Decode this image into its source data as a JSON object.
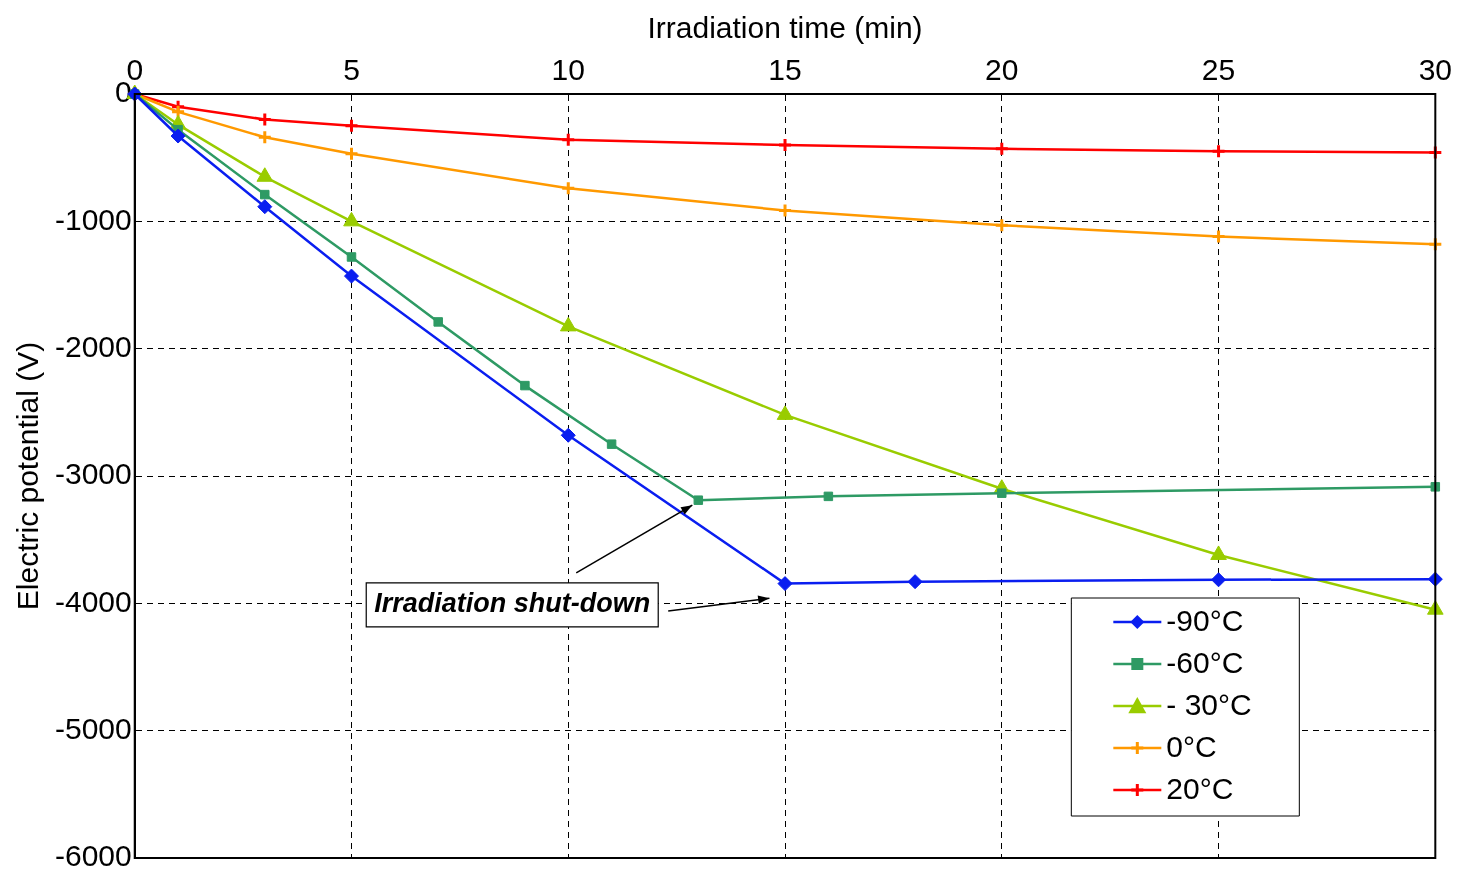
{
  "chart_data": {
    "type": "line",
    "xlabel": "Irradiation time (min)",
    "ylabel": "Electric potential (V)",
    "xlim": [
      0,
      30
    ],
    "xticks": [
      0,
      5,
      10,
      15,
      20,
      25,
      30
    ],
    "ylim": [
      -6000,
      0
    ],
    "yticks": [
      -6000,
      -5000,
      -4000,
      -3000,
      -2000,
      -1000,
      0
    ],
    "grid": true,
    "legend": "bottom right",
    "line_style": "solid",
    "series": [
      {
        "name": "-90°C",
        "color": "#0a1ef0",
        "marker": "diamond",
        "x": [
          0,
          1,
          3,
          5,
          10,
          15,
          18,
          25,
          30
        ],
        "values": [
          0,
          -330,
          -885,
          -1430,
          -2680,
          -3845,
          -3830,
          -3815,
          -3810
        ]
      },
      {
        "name": "-60°C",
        "color": "#2e9a64",
        "marker": "square",
        "x": [
          0,
          1,
          3,
          5,
          7,
          9,
          11,
          13,
          16,
          20,
          30
        ],
        "values": [
          0,
          -280,
          -790,
          -1280,
          -1790,
          -2290,
          -2750,
          -3190,
          -3160,
          -3135,
          -3085
        ]
      },
      {
        "name": "- 30°C",
        "color": "#99cc00",
        "marker": "triangle",
        "x": [
          0,
          1,
          3,
          5,
          10,
          15,
          20,
          25,
          30
        ],
        "values": [
          0,
          -240,
          -650,
          -1000,
          -1825,
          -2520,
          -3100,
          -3620,
          -4050
        ]
      },
      {
        "name": "0°C",
        "color": "#ff9900",
        "marker": "cross",
        "x": [
          0,
          1,
          3,
          5,
          10,
          15,
          20,
          25,
          30
        ],
        "values": [
          0,
          -140,
          -340,
          -470,
          -740,
          -915,
          -1030,
          -1120,
          -1180
        ]
      },
      {
        "name": "20°C",
        "color": "#ff0000",
        "marker": "cross",
        "x": [
          0,
          1,
          3,
          5,
          10,
          15,
          20,
          25,
          30
        ],
        "values": [
          0,
          -100,
          -200,
          -250,
          -360,
          -400,
          -430,
          -450,
          -460
        ]
      }
    ],
    "annotations": [
      {
        "text": "Irradiation shut-down",
        "x": 13,
        "y": -3190
      }
    ]
  }
}
